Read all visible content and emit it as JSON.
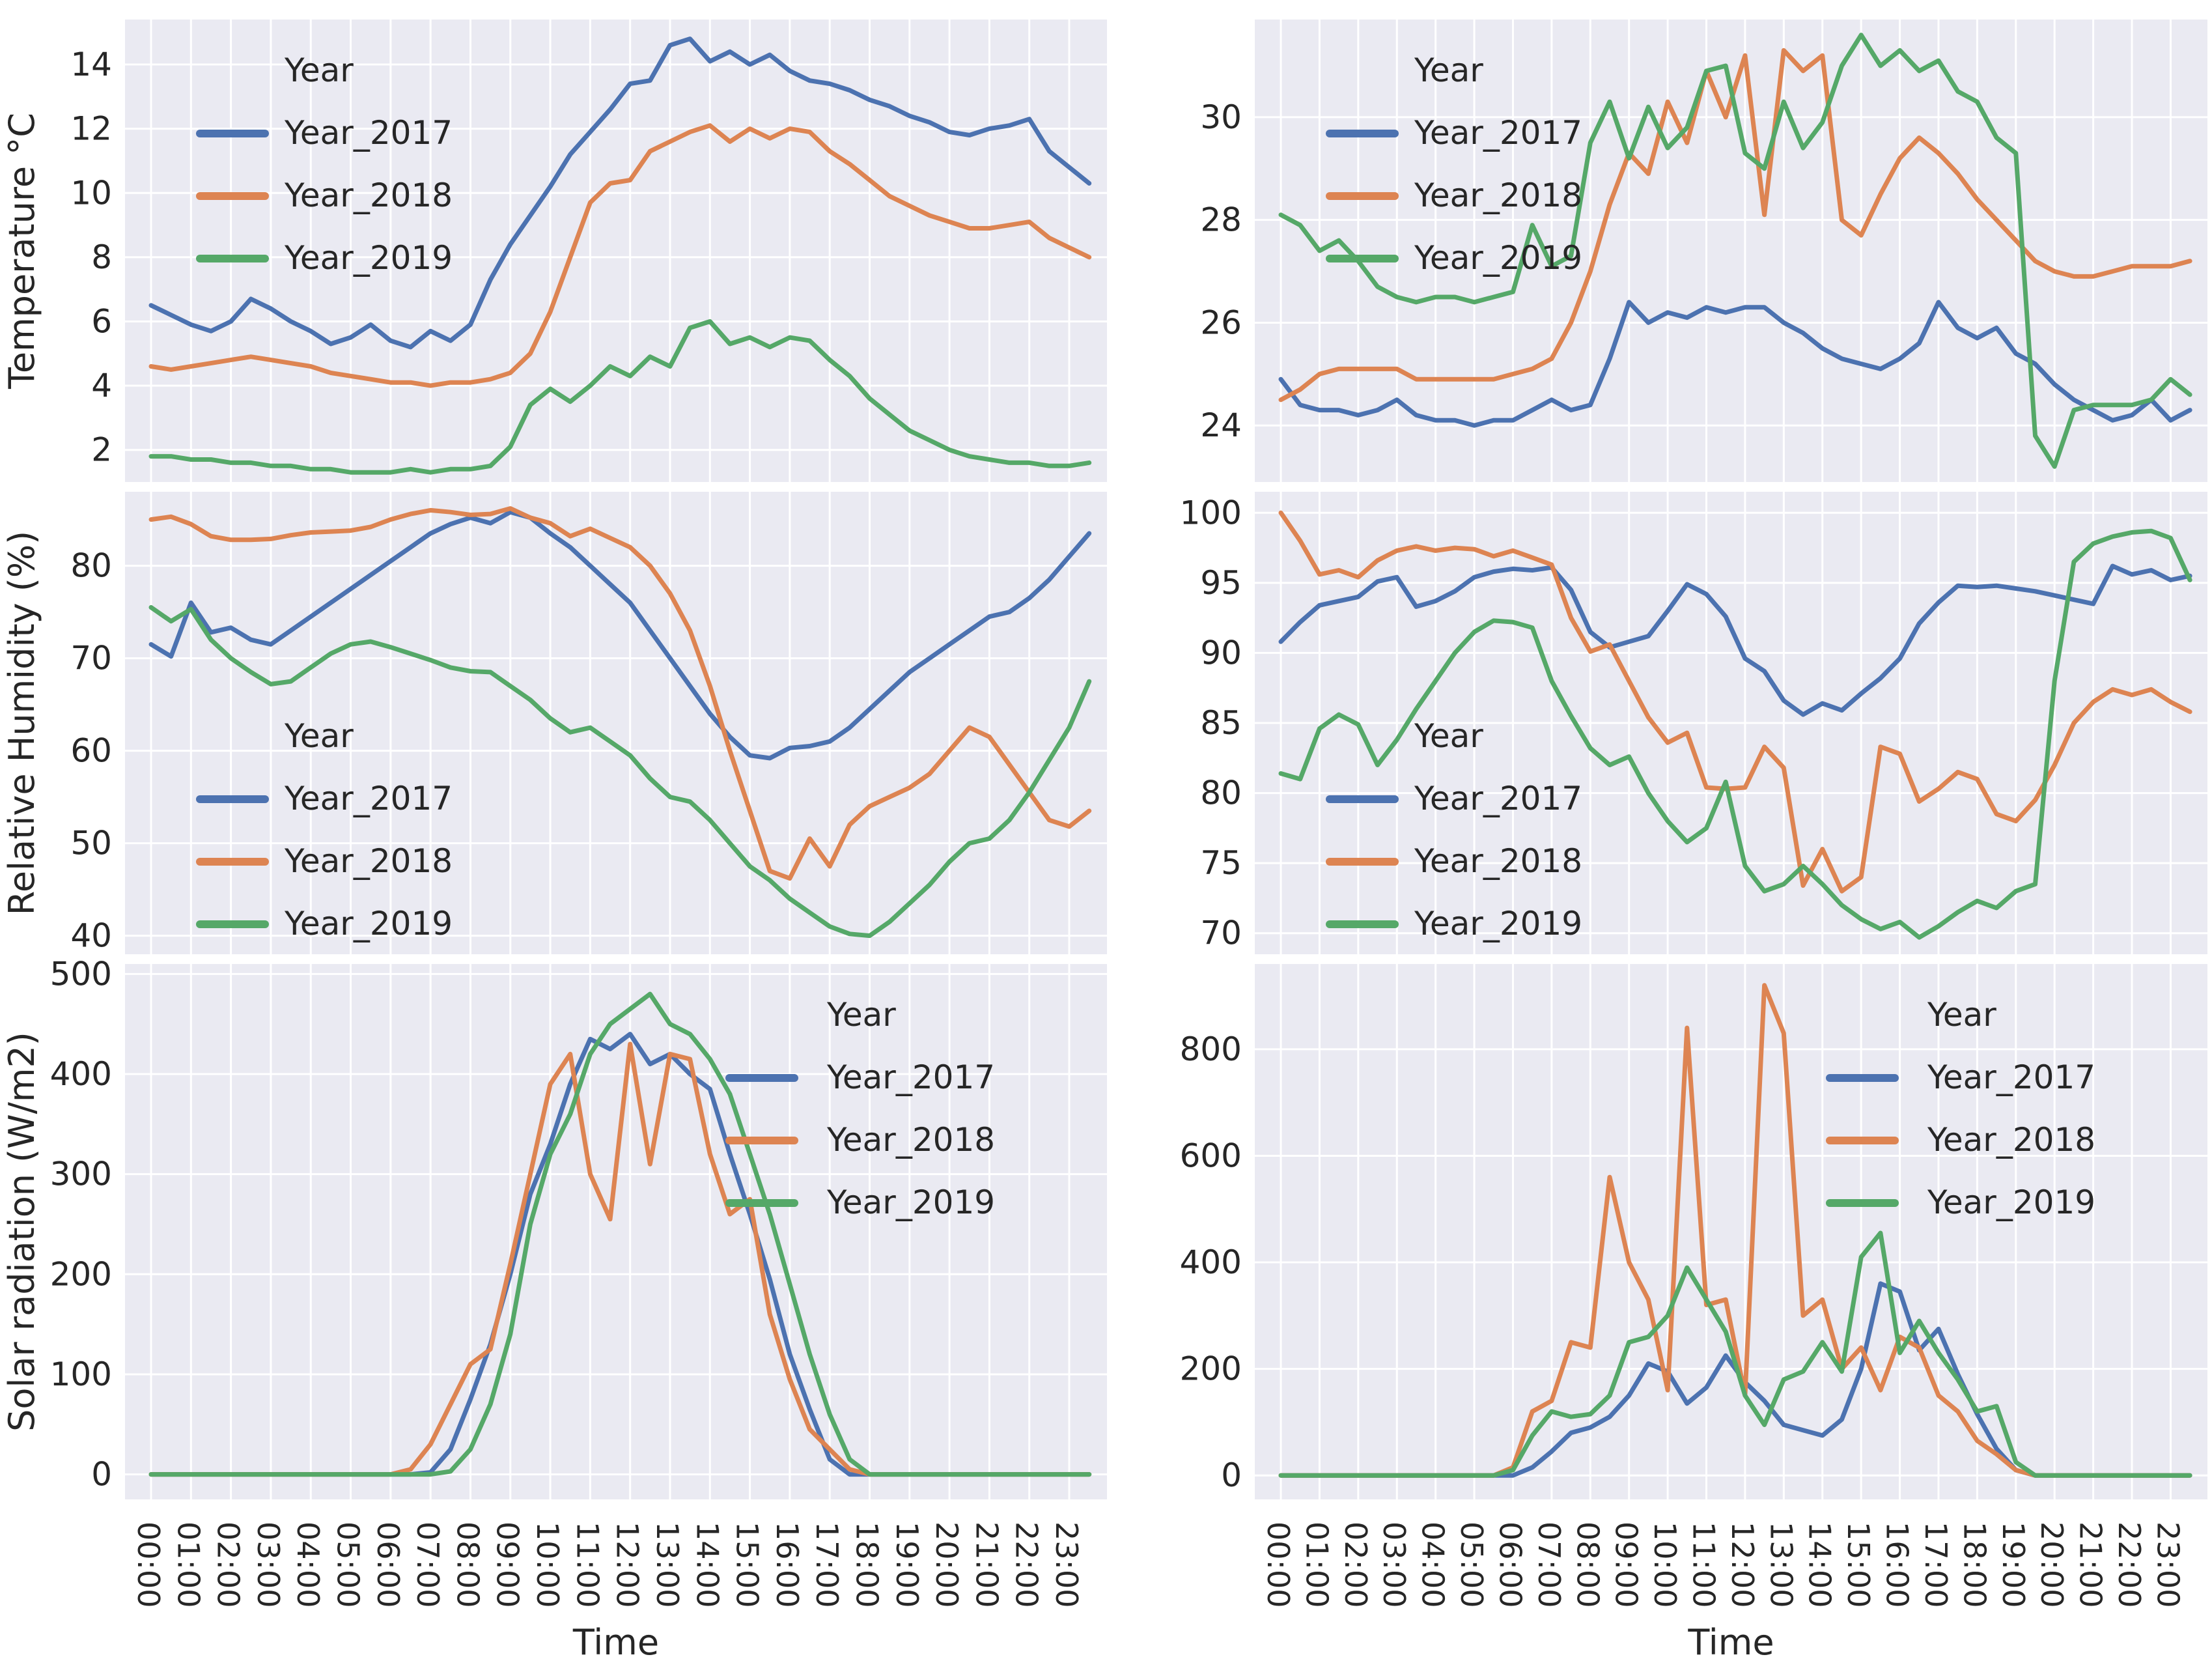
{
  "figure": {
    "background": "#ffffff",
    "plot_background": "#eaeaf2",
    "grid_color": "#ffffff",
    "text_color": "#262626"
  },
  "legend": {
    "title": "Year",
    "entries": [
      {
        "label": "Year_2017",
        "color": "#4C72B0"
      },
      {
        "label": "Year_2018",
        "color": "#DD8452"
      },
      {
        "label": "Year_2019",
        "color": "#55A868"
      }
    ]
  },
  "time_axis": {
    "label": "Time",
    "tick_labels": [
      "00:00",
      "01:00",
      "02:00",
      "03:00",
      "04:00",
      "05:00",
      "06:00",
      "07:00",
      "08:00",
      "09:00",
      "10:00",
      "11:00",
      "12:00",
      "13:00",
      "14:00",
      "15:00",
      "16:00",
      "17:00",
      "18:00",
      "19:00",
      "20:00",
      "21:00",
      "22:00",
      "23:00"
    ],
    "start_hour": 0,
    "step_hours": 0.5,
    "points_per_series": 48
  },
  "chart_data": [
    {
      "id": "temperature-left",
      "type": "line",
      "position": "top-left",
      "ylabel": "Temperature °C",
      "ylim": [
        1.0,
        15.4
      ],
      "yticks": [
        2,
        4,
        6,
        8,
        10,
        12,
        14
      ],
      "legend_position": "upper-left",
      "grid": true,
      "series": [
        {
          "name": "Year_2017",
          "color": "#4C72B0",
          "values": [
            6.5,
            6.2,
            5.9,
            5.7,
            6.0,
            6.7,
            6.4,
            6.0,
            5.7,
            5.3,
            5.5,
            5.9,
            5.4,
            5.2,
            5.7,
            5.4,
            5.9,
            7.3,
            8.4,
            9.3,
            10.2,
            11.2,
            11.9,
            12.6,
            13.4,
            13.5,
            14.6,
            14.8,
            14.1,
            14.4,
            14.0,
            14.3,
            13.8,
            13.5,
            13.4,
            13.2,
            12.9,
            12.7,
            12.4,
            12.2,
            11.9,
            11.8,
            12.0,
            12.1,
            12.3,
            11.3,
            10.8,
            10.3
          ]
        },
        {
          "name": "Year_2018",
          "color": "#DD8452",
          "values": [
            4.6,
            4.5,
            4.6,
            4.7,
            4.8,
            4.9,
            4.8,
            4.7,
            4.6,
            4.4,
            4.3,
            4.2,
            4.1,
            4.1,
            4.0,
            4.1,
            4.1,
            4.2,
            4.4,
            5.0,
            6.3,
            8.0,
            9.7,
            10.3,
            10.4,
            11.3,
            11.6,
            11.9,
            12.1,
            11.6,
            12.0,
            11.7,
            12.0,
            11.9,
            11.3,
            10.9,
            10.4,
            9.9,
            9.6,
            9.3,
            9.1,
            8.9,
            8.9,
            9.0,
            9.1,
            8.6,
            8.3,
            8.0
          ]
        },
        {
          "name": "Year_2019",
          "color": "#55A868",
          "values": [
            1.8,
            1.8,
            1.7,
            1.7,
            1.6,
            1.6,
            1.5,
            1.5,
            1.4,
            1.4,
            1.3,
            1.3,
            1.3,
            1.4,
            1.3,
            1.4,
            1.4,
            1.5,
            2.1,
            3.4,
            3.9,
            3.5,
            4.0,
            4.6,
            4.3,
            4.9,
            4.6,
            5.8,
            6.0,
            5.3,
            5.5,
            5.2,
            5.5,
            5.4,
            4.8,
            4.3,
            3.6,
            3.1,
            2.6,
            2.3,
            2.0,
            1.8,
            1.7,
            1.6,
            1.6,
            1.5,
            1.5,
            1.6
          ]
        }
      ]
    },
    {
      "id": "temperature-right",
      "type": "line",
      "position": "top-right",
      "ylabel": "",
      "ylim": [
        22.9,
        31.9
      ],
      "yticks": [
        24,
        26,
        28,
        30
      ],
      "legend_position": "upper-left",
      "grid": true,
      "series": [
        {
          "name": "Year_2017",
          "color": "#4C72B0",
          "values": [
            24.9,
            24.4,
            24.3,
            24.3,
            24.2,
            24.3,
            24.5,
            24.2,
            24.1,
            24.1,
            24.0,
            24.1,
            24.1,
            24.3,
            24.5,
            24.3,
            24.4,
            25.3,
            26.4,
            26.0,
            26.2,
            26.1,
            26.3,
            26.2,
            26.3,
            26.3,
            26.0,
            25.8,
            25.5,
            25.3,
            25.2,
            25.1,
            25.3,
            25.6,
            26.4,
            25.9,
            25.7,
            25.9,
            25.4,
            25.2,
            24.8,
            24.5,
            24.3,
            24.1,
            24.2,
            24.5,
            24.1,
            24.3
          ]
        },
        {
          "name": "Year_2018",
          "color": "#DD8452",
          "values": [
            24.5,
            24.7,
            25.0,
            25.1,
            25.1,
            25.1,
            25.1,
            24.9,
            24.9,
            24.9,
            24.9,
            24.9,
            25.0,
            25.1,
            25.3,
            26.0,
            27.0,
            28.3,
            29.3,
            28.9,
            30.3,
            29.5,
            30.9,
            30.0,
            31.2,
            28.1,
            31.3,
            30.9,
            31.2,
            28.0,
            27.7,
            28.5,
            29.2,
            29.6,
            29.3,
            28.9,
            28.4,
            28.0,
            27.6,
            27.2,
            27.0,
            26.9,
            26.9,
            27.0,
            27.1,
            27.1,
            27.1,
            27.2
          ]
        },
        {
          "name": "Year_2019",
          "color": "#55A868",
          "values": [
            28.1,
            27.9,
            27.4,
            27.6,
            27.2,
            26.7,
            26.5,
            26.4,
            26.5,
            26.5,
            26.4,
            26.5,
            26.6,
            27.9,
            27.1,
            27.3,
            29.5,
            30.3,
            29.2,
            30.2,
            29.4,
            29.8,
            30.9,
            31.0,
            29.3,
            29.0,
            30.3,
            29.4,
            29.9,
            31.0,
            31.6,
            31.0,
            31.3,
            30.9,
            31.1,
            30.5,
            30.3,
            29.6,
            29.3,
            23.8,
            23.2,
            24.3,
            24.4,
            24.4,
            24.4,
            24.5,
            24.9,
            24.6
          ]
        }
      ]
    },
    {
      "id": "humidity-left",
      "type": "line",
      "position": "middle-left",
      "ylabel": "Relative Humidity (%)",
      "ylim": [
        38,
        88
      ],
      "yticks": [
        40,
        50,
        60,
        70,
        80
      ],
      "legend_position": "lower-left",
      "grid": true,
      "series": [
        {
          "name": "Year_2017",
          "color": "#4C72B0",
          "values": [
            71.5,
            70.2,
            76.0,
            72.8,
            73.3,
            72.0,
            71.5,
            73.0,
            74.5,
            76.0,
            77.5,
            79.0,
            80.5,
            82.0,
            83.5,
            84.5,
            85.2,
            84.6,
            85.8,
            85.2,
            83.5,
            82.0,
            80.0,
            78.0,
            76.0,
            73.0,
            70.0,
            67.0,
            64.0,
            61.5,
            59.5,
            59.2,
            60.3,
            60.5,
            61.0,
            62.5,
            64.5,
            66.5,
            68.5,
            70.0,
            71.5,
            73.0,
            74.5,
            75.0,
            76.5,
            78.5,
            81.0,
            83.5
          ]
        },
        {
          "name": "Year_2018",
          "color": "#DD8452",
          "values": [
            85.0,
            85.3,
            84.5,
            83.2,
            82.8,
            82.8,
            82.9,
            83.3,
            83.6,
            83.7,
            83.8,
            84.2,
            85.0,
            85.6,
            86.0,
            85.8,
            85.5,
            85.6,
            86.2,
            85.2,
            84.6,
            83.2,
            84.0,
            83.0,
            82.0,
            80.0,
            77.0,
            73.0,
            67.0,
            60.0,
            53.5,
            47.0,
            46.2,
            50.5,
            47.5,
            52.0,
            54.0,
            55.0,
            56.0,
            57.5,
            60.0,
            62.5,
            61.5,
            58.5,
            55.5,
            52.5,
            51.8,
            53.5
          ]
        },
        {
          "name": "Year_2019",
          "color": "#55A868",
          "values": [
            75.5,
            74.0,
            75.3,
            72.0,
            70.0,
            68.5,
            67.2,
            67.5,
            69.0,
            70.5,
            71.5,
            71.8,
            71.2,
            70.5,
            69.8,
            69.0,
            68.6,
            68.5,
            67.0,
            65.5,
            63.5,
            62.0,
            62.5,
            61.0,
            59.5,
            57.0,
            55.0,
            54.5,
            52.5,
            50.0,
            47.5,
            46.0,
            44.0,
            42.5,
            41.0,
            40.2,
            40.0,
            41.5,
            43.5,
            45.5,
            48.0,
            50.0,
            50.5,
            52.5,
            55.5,
            59.0,
            62.5,
            67.5
          ]
        }
      ]
    },
    {
      "id": "humidity-right",
      "type": "line",
      "position": "middle-right",
      "ylabel": "",
      "ylim": [
        68.5,
        101.5
      ],
      "yticks": [
        70,
        75,
        80,
        85,
        90,
        95,
        100
      ],
      "legend_position": "lower-left",
      "grid": true,
      "series": [
        {
          "name": "Year_2017",
          "color": "#4C72B0",
          "values": [
            90.8,
            92.2,
            93.4,
            93.7,
            94.0,
            95.1,
            95.4,
            93.3,
            93.7,
            94.4,
            95.4,
            95.8,
            96.0,
            95.9,
            96.1,
            94.5,
            91.5,
            90.4,
            90.8,
            91.2,
            93.0,
            94.9,
            94.2,
            92.6,
            89.6,
            88.7,
            86.6,
            85.6,
            86.4,
            85.9,
            87.1,
            88.2,
            89.6,
            92.1,
            93.6,
            94.8,
            94.7,
            94.8,
            94.6,
            94.4,
            94.1,
            93.8,
            93.5,
            96.2,
            95.6,
            95.9,
            95.2,
            95.5
          ]
        },
        {
          "name": "Year_2018",
          "color": "#DD8452",
          "values": [
            100.0,
            98.0,
            95.6,
            95.9,
            95.4,
            96.6,
            97.3,
            97.6,
            97.3,
            97.5,
            97.4,
            96.9,
            97.3,
            96.8,
            96.3,
            92.5,
            90.1,
            90.6,
            88.0,
            85.4,
            83.6,
            84.3,
            80.4,
            80.3,
            80.4,
            83.3,
            81.8,
            73.4,
            76.0,
            73.0,
            74.0,
            83.3,
            82.8,
            79.4,
            80.3,
            81.5,
            81.0,
            78.5,
            78.0,
            79.5,
            82.0,
            85.0,
            86.5,
            87.4,
            87.0,
            87.4,
            86.5,
            85.8
          ]
        },
        {
          "name": "Year_2019",
          "color": "#55A868",
          "values": [
            81.4,
            81.0,
            84.6,
            85.6,
            84.9,
            82.0,
            83.8,
            86.0,
            88.0,
            90.0,
            91.5,
            92.3,
            92.2,
            91.8,
            88.0,
            85.5,
            83.2,
            82.0,
            82.6,
            80.0,
            78.0,
            76.5,
            77.5,
            80.8,
            74.8,
            73.0,
            73.5,
            74.8,
            73.5,
            72.0,
            71.0,
            70.3,
            70.8,
            69.7,
            70.5,
            71.5,
            72.3,
            71.8,
            73.0,
            73.5,
            88.0,
            96.5,
            97.8,
            98.3,
            98.6,
            98.7,
            98.2,
            95.2
          ]
        }
      ]
    },
    {
      "id": "solar-left",
      "type": "line",
      "position": "bottom-left",
      "ylabel": "Solar radiation (W/m2)",
      "ylim": [
        -25,
        510
      ],
      "yticks": [
        0,
        100,
        200,
        300,
        400,
        500
      ],
      "legend_position": "upper-right",
      "grid": true,
      "series": [
        {
          "name": "Year_2017",
          "color": "#4C72B0",
          "values": [
            0,
            0,
            0,
            0,
            0,
            0,
            0,
            0,
            0,
            0,
            0,
            0,
            0,
            0,
            2,
            25,
            75,
            130,
            200,
            280,
            330,
            390,
            435,
            425,
            440,
            410,
            420,
            400,
            385,
            320,
            260,
            195,
            120,
            65,
            15,
            0,
            0,
            0,
            0,
            0,
            0,
            0,
            0,
            0,
            0,
            0,
            0,
            0
          ]
        },
        {
          "name": "Year_2018",
          "color": "#DD8452",
          "values": [
            0,
            0,
            0,
            0,
            0,
            0,
            0,
            0,
            0,
            0,
            0,
            0,
            0,
            5,
            30,
            70,
            110,
            125,
            210,
            300,
            390,
            420,
            300,
            255,
            430,
            310,
            420,
            415,
            320,
            260,
            275,
            160,
            95,
            45,
            25,
            5,
            0,
            0,
            0,
            0,
            0,
            0,
            0,
            0,
            0,
            0,
            0,
            0
          ]
        },
        {
          "name": "Year_2019",
          "color": "#55A868",
          "values": [
            0,
            0,
            0,
            0,
            0,
            0,
            0,
            0,
            0,
            0,
            0,
            0,
            0,
            0,
            0,
            3,
            25,
            70,
            140,
            250,
            320,
            360,
            420,
            450,
            465,
            480,
            450,
            440,
            415,
            380,
            320,
            260,
            190,
            120,
            60,
            15,
            0,
            0,
            0,
            0,
            0,
            0,
            0,
            0,
            0,
            0,
            0,
            0
          ]
        }
      ]
    },
    {
      "id": "solar-right",
      "type": "line",
      "position": "bottom-right",
      "ylabel": "",
      "ylim": [
        -45,
        960
      ],
      "yticks": [
        0,
        200,
        400,
        600,
        800
      ],
      "legend_position": "upper-right",
      "grid": true,
      "series": [
        {
          "name": "Year_2017",
          "color": "#4C72B0",
          "values": [
            0,
            0,
            0,
            0,
            0,
            0,
            0,
            0,
            0,
            0,
            0,
            0,
            0,
            15,
            45,
            80,
            90,
            110,
            150,
            210,
            195,
            135,
            165,
            225,
            175,
            140,
            95,
            85,
            75,
            105,
            200,
            360,
            345,
            235,
            275,
            190,
            115,
            50,
            10,
            0,
            0,
            0,
            0,
            0,
            0,
            0,
            0,
            0
          ]
        },
        {
          "name": "Year_2018",
          "color": "#DD8452",
          "values": [
            0,
            0,
            0,
            0,
            0,
            0,
            0,
            0,
            0,
            0,
            0,
            0,
            15,
            120,
            140,
            250,
            240,
            560,
            400,
            330,
            160,
            840,
            320,
            330,
            150,
            920,
            830,
            300,
            330,
            200,
            240,
            160,
            260,
            240,
            150,
            120,
            65,
            40,
            10,
            0,
            0,
            0,
            0,
            0,
            0,
            0,
            0,
            0
          ]
        },
        {
          "name": "Year_2019",
          "color": "#55A868",
          "values": [
            0,
            0,
            0,
            0,
            0,
            0,
            0,
            0,
            0,
            0,
            0,
            0,
            10,
            75,
            120,
            110,
            115,
            150,
            250,
            260,
            300,
            390,
            330,
            270,
            150,
            95,
            180,
            195,
            250,
            195,
            410,
            455,
            230,
            290,
            230,
            180,
            120,
            130,
            25,
            0,
            0,
            0,
            0,
            0,
            0,
            0,
            0,
            0
          ]
        }
      ]
    }
  ]
}
